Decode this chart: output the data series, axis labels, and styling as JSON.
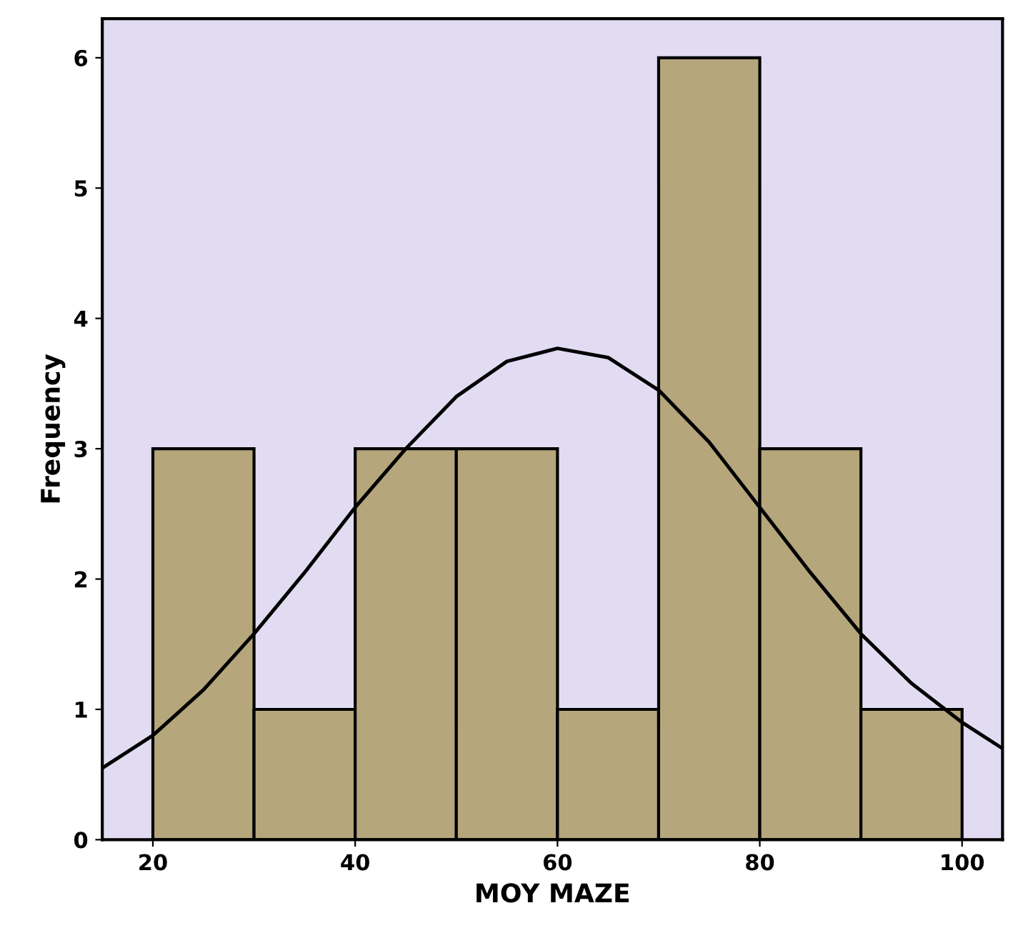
{
  "chart_data": {
    "type": "histogram",
    "xlabel": "MOY MAZE",
    "ylabel": "Frequency",
    "bins": [
      20,
      30,
      40,
      50,
      60,
      70,
      80,
      90,
      100
    ],
    "values": [
      3,
      1,
      3,
      3,
      1,
      6,
      3,
      1
    ],
    "color": "#b5a67c",
    "series": [
      {
        "type": "line",
        "color": "#000000",
        "x": [
          15,
          20,
          25,
          30,
          35,
          40,
          45,
          50,
          55,
          60,
          65,
          70,
          75,
          80,
          85,
          90,
          95,
          100,
          104
        ],
        "values": [
          0.55,
          0.8,
          1.15,
          1.58,
          2.05,
          2.55,
          3.0,
          3.4,
          3.67,
          3.77,
          3.7,
          3.45,
          3.05,
          2.55,
          2.05,
          1.58,
          1.2,
          0.9,
          0.7
        ]
      }
    ],
    "xlim": [
      15,
      104
    ],
    "xticks": [
      20,
      40,
      60,
      80,
      100
    ],
    "ylim": [
      0,
      6.3
    ],
    "yticks": [
      0,
      1,
      2,
      3,
      4,
      5,
      6
    ],
    "grid": false
  }
}
